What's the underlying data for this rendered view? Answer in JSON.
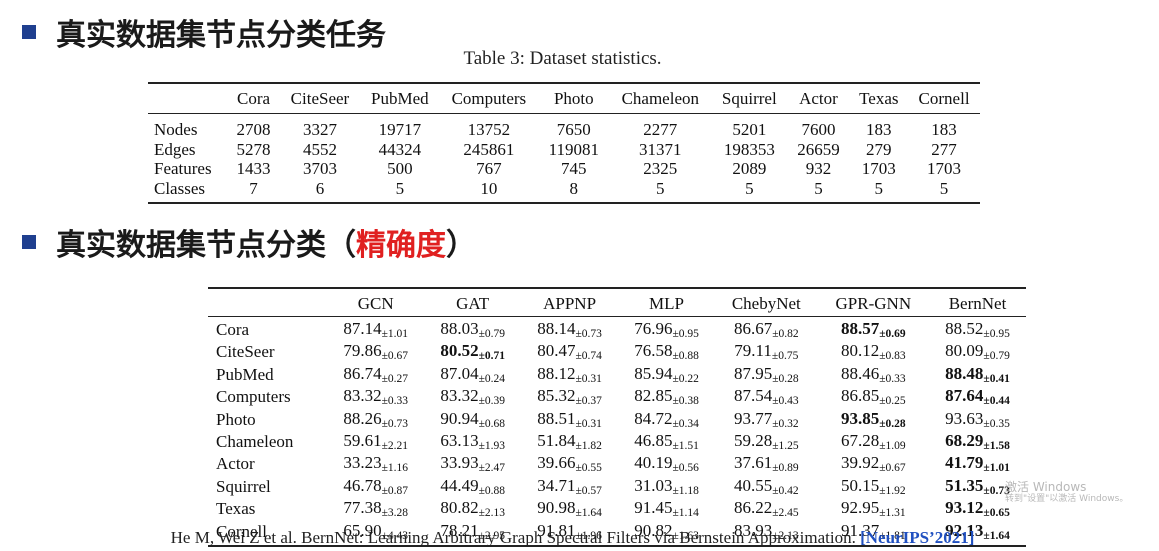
{
  "heading1": "真实数据集节点分类任务",
  "caption": "Table 3: Dataset statistics.",
  "stats_table": {
    "columns": [
      "",
      "Cora",
      "CiteSeer",
      "PubMed",
      "Computers",
      "Photo",
      "Chameleon",
      "Squirrel",
      "Actor",
      "Texas",
      "Cornell"
    ],
    "rows": [
      {
        "label": "Nodes",
        "values": [
          "2708",
          "3327",
          "19717",
          "13752",
          "7650",
          "2277",
          "5201",
          "7600",
          "183",
          "183"
        ]
      },
      {
        "label": "Edges",
        "values": [
          "5278",
          "4552",
          "44324",
          "245861",
          "119081",
          "31371",
          "198353",
          "26659",
          "279",
          "277"
        ]
      },
      {
        "label": "Features",
        "values": [
          "1433",
          "3703",
          "500",
          "767",
          "745",
          "2325",
          "2089",
          "932",
          "1703",
          "1703"
        ]
      },
      {
        "label": "Classes",
        "values": [
          "7",
          "6",
          "5",
          "10",
          "8",
          "5",
          "5",
          "5",
          "5",
          "5"
        ]
      }
    ]
  },
  "heading2": {
    "prefix": "真实数据集节点分类（",
    "accent": "精确度",
    "suffix": "）"
  },
  "results_table": {
    "columns": [
      "",
      "GCN",
      "GAT",
      "APPNP",
      "MLP",
      "ChebyNet",
      "GPR-GNN",
      "BernNet"
    ],
    "rows": [
      {
        "label": "Cora",
        "cells": [
          {
            "mean": "87.14",
            "std": "±1.01",
            "best": false
          },
          {
            "mean": "88.03",
            "std": "±0.79",
            "best": false
          },
          {
            "mean": "88.14",
            "std": "±0.73",
            "best": false
          },
          {
            "mean": "76.96",
            "std": "±0.95",
            "best": false
          },
          {
            "mean": "86.67",
            "std": "±0.82",
            "best": false
          },
          {
            "mean": "88.57",
            "std": "±0.69",
            "best": true
          },
          {
            "mean": "88.52",
            "std": "±0.95",
            "best": false
          }
        ]
      },
      {
        "label": "CiteSeer",
        "cells": [
          {
            "mean": "79.86",
            "std": "±0.67",
            "best": false
          },
          {
            "mean": "80.52",
            "std": "±0.71",
            "best": true
          },
          {
            "mean": "80.47",
            "std": "±0.74",
            "best": false
          },
          {
            "mean": "76.58",
            "std": "±0.88",
            "best": false
          },
          {
            "mean": "79.11",
            "std": "±0.75",
            "best": false
          },
          {
            "mean": "80.12",
            "std": "±0.83",
            "best": false
          },
          {
            "mean": "80.09",
            "std": "±0.79",
            "best": false
          }
        ]
      },
      {
        "label": "PubMed",
        "cells": [
          {
            "mean": "86.74",
            "std": "±0.27",
            "best": false
          },
          {
            "mean": "87.04",
            "std": "±0.24",
            "best": false
          },
          {
            "mean": "88.12",
            "std": "±0.31",
            "best": false
          },
          {
            "mean": "85.94",
            "std": "±0.22",
            "best": false
          },
          {
            "mean": "87.95",
            "std": "±0.28",
            "best": false
          },
          {
            "mean": "88.46",
            "std": "±0.33",
            "best": false
          },
          {
            "mean": "88.48",
            "std": "±0.41",
            "best": true
          }
        ]
      },
      {
        "label": "Computers",
        "cells": [
          {
            "mean": "83.32",
            "std": "±0.33",
            "best": false
          },
          {
            "mean": "83.32",
            "std": "±0.39",
            "best": false
          },
          {
            "mean": "85.32",
            "std": "±0.37",
            "best": false
          },
          {
            "mean": "82.85",
            "std": "±0.38",
            "best": false
          },
          {
            "mean": "87.54",
            "std": "±0.43",
            "best": false
          },
          {
            "mean": "86.85",
            "std": "±0.25",
            "best": false
          },
          {
            "mean": "87.64",
            "std": "±0.44",
            "best": true
          }
        ]
      },
      {
        "label": "Photo",
        "cells": [
          {
            "mean": "88.26",
            "std": "±0.73",
            "best": false
          },
          {
            "mean": "90.94",
            "std": "±0.68",
            "best": false
          },
          {
            "mean": "88.51",
            "std": "±0.31",
            "best": false
          },
          {
            "mean": "84.72",
            "std": "±0.34",
            "best": false
          },
          {
            "mean": "93.77",
            "std": "±0.32",
            "best": false
          },
          {
            "mean": "93.85",
            "std": "±0.28",
            "best": true
          },
          {
            "mean": "93.63",
            "std": "±0.35",
            "best": false
          }
        ]
      },
      {
        "label": "Chameleon",
        "cells": [
          {
            "mean": "59.61",
            "std": "±2.21",
            "best": false
          },
          {
            "mean": "63.13",
            "std": "±1.93",
            "best": false
          },
          {
            "mean": "51.84",
            "std": "±1.82",
            "best": false
          },
          {
            "mean": "46.85",
            "std": "±1.51",
            "best": false
          },
          {
            "mean": "59.28",
            "std": "±1.25",
            "best": false
          },
          {
            "mean": "67.28",
            "std": "±1.09",
            "best": false
          },
          {
            "mean": "68.29",
            "std": "±1.58",
            "best": true
          }
        ]
      },
      {
        "label": "Actor",
        "cells": [
          {
            "mean": "33.23",
            "std": "±1.16",
            "best": false
          },
          {
            "mean": "33.93",
            "std": "±2.47",
            "best": false
          },
          {
            "mean": "39.66",
            "std": "±0.55",
            "best": false
          },
          {
            "mean": "40.19",
            "std": "±0.56",
            "best": false
          },
          {
            "mean": "37.61",
            "std": "±0.89",
            "best": false
          },
          {
            "mean": "39.92",
            "std": "±0.67",
            "best": false
          },
          {
            "mean": "41.79",
            "std": "±1.01",
            "best": true
          }
        ]
      },
      {
        "label": "Squirrel",
        "cells": [
          {
            "mean": "46.78",
            "std": "±0.87",
            "best": false
          },
          {
            "mean": "44.49",
            "std": "±0.88",
            "best": false
          },
          {
            "mean": "34.71",
            "std": "±0.57",
            "best": false
          },
          {
            "mean": "31.03",
            "std": "±1.18",
            "best": false
          },
          {
            "mean": "40.55",
            "std": "±0.42",
            "best": false
          },
          {
            "mean": "50.15",
            "std": "±1.92",
            "best": false
          },
          {
            "mean": "51.35",
            "std": "±0.73",
            "best": true
          }
        ]
      },
      {
        "label": "Texas",
        "cells": [
          {
            "mean": "77.38",
            "std": "±3.28",
            "best": false
          },
          {
            "mean": "80.82",
            "std": "±2.13",
            "best": false
          },
          {
            "mean": "90.98",
            "std": "±1.64",
            "best": false
          },
          {
            "mean": "91.45",
            "std": "±1.14",
            "best": false
          },
          {
            "mean": "86.22",
            "std": "±2.45",
            "best": false
          },
          {
            "mean": "92.95",
            "std": "±1.31",
            "best": false
          },
          {
            "mean": "93.12",
            "std": "±0.65",
            "best": true
          }
        ]
      },
      {
        "label": "Cornell",
        "cells": [
          {
            "mean": "65.90",
            "std": "±4.43",
            "best": false
          },
          {
            "mean": "78.21",
            "std": "±2.95",
            "best": false
          },
          {
            "mean": "91.81",
            "std": "±1.96",
            "best": false
          },
          {
            "mean": "90.82",
            "std": "±1.63",
            "best": false
          },
          {
            "mean": "83.93",
            "std": "±2.13",
            "best": false
          },
          {
            "mean": "91.37",
            "std": "±1.81",
            "best": false
          },
          {
            "mean": "92.13",
            "std": "±1.64",
            "best": true
          }
        ]
      }
    ]
  },
  "citation": {
    "text": "He M, Wei Z et al. BernNet: Learning Arbitrary Graph Spectral Filters via Bernstein Approximation. ",
    "venue": "[NeurIPS’2021]"
  },
  "watermark": {
    "line1": "激活 Windows",
    "line2": "转到\"设置\"以激活 Windows。"
  },
  "colors": {
    "bullet": "#1f3f8f",
    "accent": "#e02020",
    "venue": "#2050c0"
  }
}
